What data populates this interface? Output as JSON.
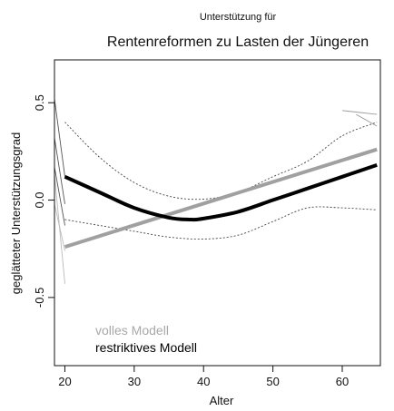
{
  "chart_data": {
    "type": "line",
    "subtitle": "Unterstützung für",
    "title": "Rentenreformen zu Lasten der Jüngeren",
    "xlabel": "Alter",
    "ylabel": "geglätteter Unterstützungsgrad",
    "xlim": [
      18.5,
      65.5
    ],
    "ylim": [
      -0.85,
      0.72
    ],
    "x_ticks": [
      20,
      30,
      40,
      50,
      60
    ],
    "y_ticks": [
      -0.5,
      0.0,
      0.5
    ],
    "y_tick_labels": [
      "-0.5",
      "0.0",
      "0.5"
    ],
    "grid": false,
    "legend_position": "bottom-left",
    "series": [
      {
        "name": "volles Modell",
        "color": "#a0a0a0",
        "style": "thick",
        "x": [
          20,
          65
        ],
        "y": [
          -0.24,
          0.26
        ]
      },
      {
        "name": "restriktives Modell",
        "color": "#000000",
        "style": "thick",
        "x": [
          20,
          25,
          30,
          35,
          38,
          40,
          45,
          50,
          55,
          60,
          65
        ],
        "y": [
          0.12,
          0.04,
          -0.04,
          -0.09,
          -0.1,
          -0.095,
          -0.06,
          0.0,
          0.06,
          0.12,
          0.18
        ]
      }
    ],
    "bands": [
      {
        "color": "#444444",
        "style": "dashed",
        "x": [
          20,
          25,
          30,
          35,
          40,
          45,
          50,
          55,
          60,
          65
        ],
        "upper": [
          0.4,
          0.22,
          0.09,
          0.02,
          0.005,
          0.04,
          0.12,
          0.2,
          0.33,
          0.4
        ],
        "lower": [
          -0.1,
          -0.13,
          -0.16,
          -0.19,
          -0.2,
          -0.18,
          -0.11,
          -0.04,
          -0.04,
          -0.05
        ]
      }
    ],
    "outer_edge_lines": [
      {
        "color": "#555555",
        "x": [
          18.5,
          20
        ],
        "y": [
          0.52,
          0.12
        ]
      },
      {
        "color": "#555555",
        "x": [
          18.5,
          20
        ],
        "y": [
          0.32,
          -0.02
        ]
      },
      {
        "color": "#555555",
        "x": [
          18.5,
          20
        ],
        "y": [
          0.17,
          -0.13
        ]
      },
      {
        "color": "#bbbbbb",
        "x": [
          18.5,
          20
        ],
        "y": [
          0.13,
          -0.43
        ]
      },
      {
        "color": "#bbbbbb",
        "x": [
          18.5,
          20
        ],
        "y": [
          -0.02,
          -0.26
        ]
      },
      {
        "color": "#999999",
        "x": [
          60,
          65
        ],
        "y": [
          0.46,
          0.44
        ]
      },
      {
        "color": "#999999",
        "x": [
          62,
          65
        ],
        "y": [
          0.44,
          0.38
        ]
      }
    ]
  }
}
